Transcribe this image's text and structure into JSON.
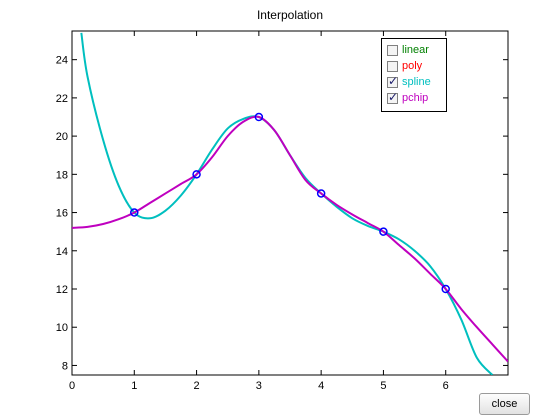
{
  "window": {
    "close_label": "close"
  },
  "legend": {
    "items": [
      {
        "label": "linear",
        "checked": false,
        "color": "#008000"
      },
      {
        "label": "poly",
        "checked": false,
        "color": "#ff0000"
      },
      {
        "label": "spline",
        "checked": true,
        "color": "#00bfbf"
      },
      {
        "label": "pchip",
        "checked": true,
        "color": "#bf00bf"
      }
    ]
  },
  "chart_data": {
    "type": "line",
    "title": "Interpolation",
    "xlabel": "",
    "ylabel": "",
    "xlim": [
      0,
      7
    ],
    "ylim": [
      7.5,
      25.5
    ],
    "xticks": [
      0,
      1,
      2,
      3,
      4,
      5,
      6
    ],
    "yticks": [
      8,
      10,
      12,
      14,
      16,
      18,
      20,
      22,
      24
    ],
    "grid": false,
    "legend_position": "top-right",
    "markers": {
      "x": [
        1,
        2,
        3,
        4,
        5,
        6
      ],
      "y": [
        16,
        18,
        21,
        17,
        15,
        12
      ],
      "color": "#0000ff",
      "style": "circle"
    },
    "series": [
      {
        "name": "spline",
        "color": "#00bfbf",
        "x": [
          0.15,
          0.25,
          0.5,
          0.75,
          1.0,
          1.25,
          1.5,
          1.75,
          2.0,
          2.25,
          2.5,
          2.75,
          3.0,
          3.25,
          3.5,
          3.75,
          4.0,
          4.25,
          4.5,
          4.75,
          5.0,
          5.25,
          5.5,
          5.75,
          6.0,
          6.25,
          6.5,
          6.75
        ],
        "y": [
          25.4,
          23.1,
          19.8,
          17.4,
          16.0,
          15.7,
          16.1,
          16.9,
          18.0,
          19.3,
          20.4,
          20.9,
          21.0,
          20.3,
          19.0,
          17.8,
          17.0,
          16.3,
          15.7,
          15.3,
          15.0,
          14.6,
          14.0,
          13.2,
          12.0,
          10.4,
          8.4,
          7.5
        ]
      },
      {
        "name": "pchip",
        "color": "#bf00bf",
        "x": [
          0,
          0.25,
          0.5,
          0.75,
          1.0,
          1.25,
          1.5,
          1.75,
          2.0,
          2.25,
          2.5,
          2.75,
          3.0,
          3.25,
          3.5,
          3.75,
          4.0,
          4.25,
          4.5,
          4.75,
          5.0,
          5.25,
          5.5,
          5.75,
          6.0,
          6.25,
          6.5,
          6.75,
          7.0
        ],
        "y": [
          15.2,
          15.25,
          15.4,
          15.65,
          16.0,
          16.5,
          17.0,
          17.5,
          18.0,
          18.9,
          20.0,
          20.75,
          21.0,
          20.3,
          19.0,
          17.7,
          17.0,
          16.4,
          15.9,
          15.45,
          15.0,
          14.3,
          13.6,
          12.8,
          12.0,
          10.95,
          10.0,
          9.1,
          8.2
        ]
      }
    ]
  }
}
